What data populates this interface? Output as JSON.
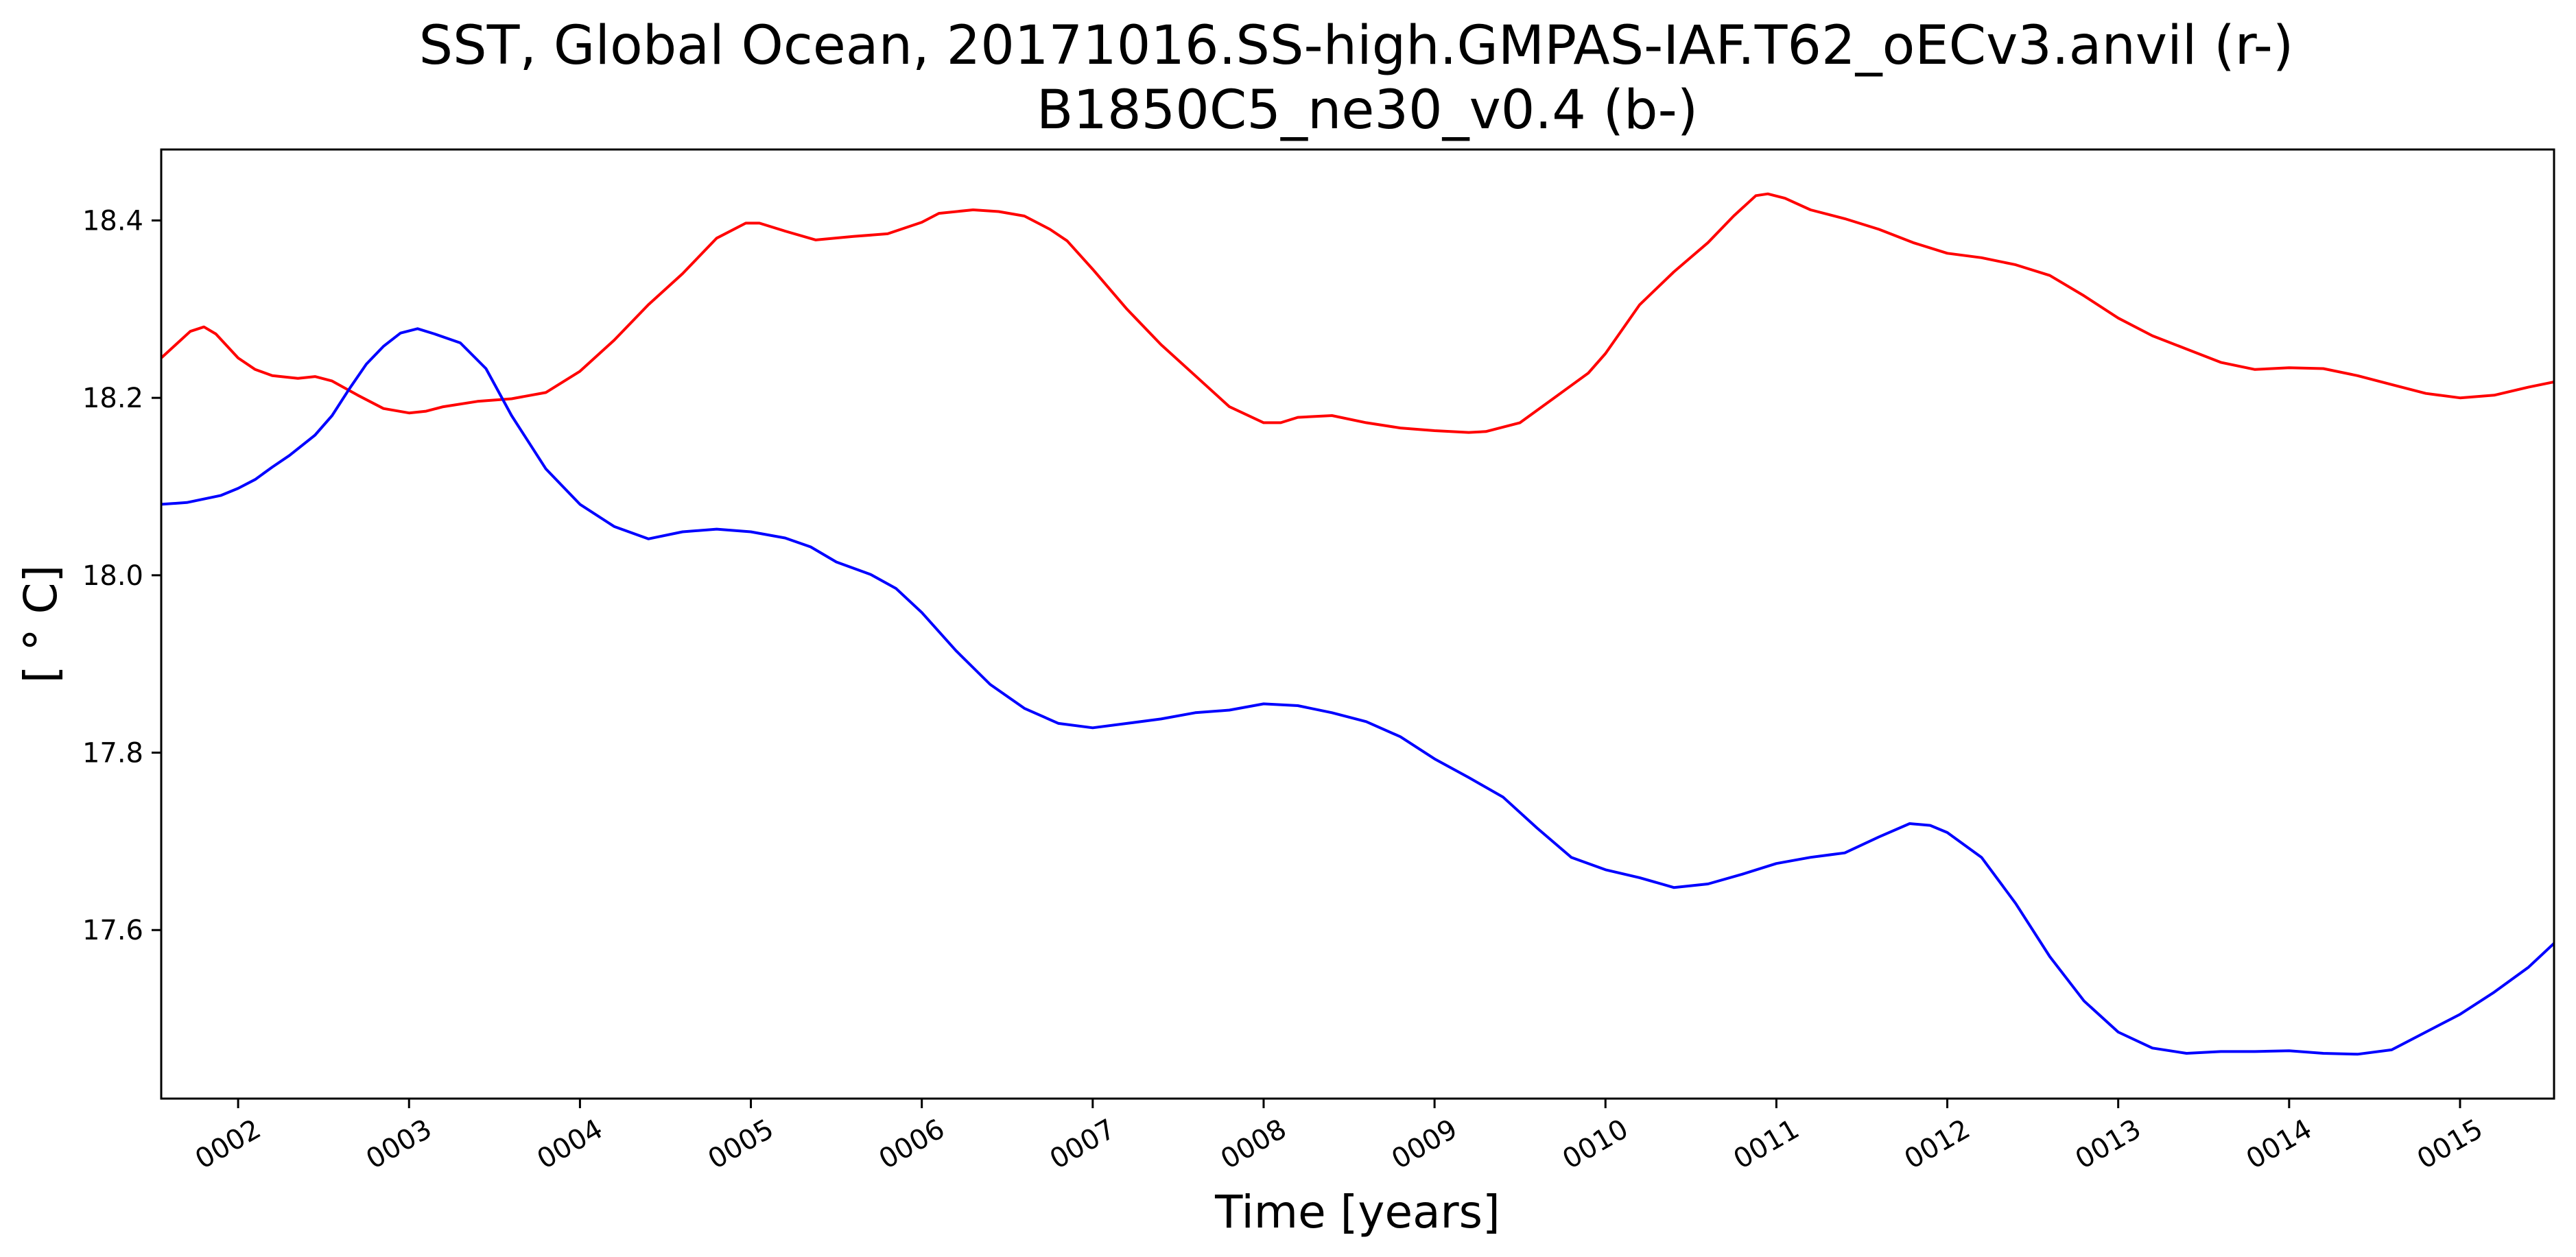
{
  "chart_data": {
    "type": "line",
    "title_line1": "SST, Global Ocean, 20171016.SS-high.GMPAS-IAF.T62_oECv3.anvil (r-)",
    "title_line2": "B1850C5_ne30_v0.4 (b-)",
    "xlabel": "Time [years]",
    "ylabel": "[ ° C]",
    "xlim": [
      1.55,
      15.55
    ],
    "ylim": [
      17.41,
      18.48
    ],
    "grid": false,
    "x_ticks": [
      {
        "value": 2,
        "label": "0002"
      },
      {
        "value": 3,
        "label": "0003"
      },
      {
        "value": 4,
        "label": "0004"
      },
      {
        "value": 5,
        "label": "0005"
      },
      {
        "value": 6,
        "label": "0006"
      },
      {
        "value": 7,
        "label": "0007"
      },
      {
        "value": 8,
        "label": "0008"
      },
      {
        "value": 9,
        "label": "0009"
      },
      {
        "value": 10,
        "label": "0010"
      },
      {
        "value": 11,
        "label": "0011"
      },
      {
        "value": 12,
        "label": "0012"
      },
      {
        "value": 13,
        "label": "0013"
      },
      {
        "value": 14,
        "label": "0014"
      },
      {
        "value": 15,
        "label": "0015"
      }
    ],
    "y_ticks": [
      {
        "value": 17.6,
        "label": "17.6"
      },
      {
        "value": 17.8,
        "label": "17.8"
      },
      {
        "value": 18.0,
        "label": "18.0"
      },
      {
        "value": 18.2,
        "label": "18.2"
      },
      {
        "value": 18.4,
        "label": "18.4"
      }
    ],
    "series": [
      {
        "color": "#ff0000",
        "x": [
          1.55,
          1.72,
          1.8,
          1.87,
          2.0,
          2.1,
          2.2,
          2.35,
          2.45,
          2.55,
          2.7,
          2.85,
          3.0,
          3.1,
          3.2,
          3.4,
          3.6,
          3.8,
          4.0,
          4.2,
          4.4,
          4.6,
          4.8,
          4.97,
          5.05,
          5.2,
          5.38,
          5.6,
          5.8,
          6.0,
          6.1,
          6.3,
          6.45,
          6.6,
          6.75,
          6.85,
          7.0,
          7.2,
          7.4,
          7.6,
          7.8,
          8.0,
          8.1,
          8.2,
          8.4,
          8.6,
          8.8,
          9.0,
          9.2,
          9.3,
          9.5,
          9.7,
          9.9,
          10.0,
          10.2,
          10.4,
          10.6,
          10.75,
          10.88,
          10.95,
          11.05,
          11.2,
          11.4,
          11.6,
          11.8,
          12.0,
          12.2,
          12.4,
          12.6,
          12.8,
          13.0,
          13.2,
          13.4,
          13.6,
          13.8,
          14.0,
          14.2,
          14.4,
          14.6,
          14.8,
          15.0,
          15.2,
          15.4,
          15.55
        ],
        "y": [
          18.245,
          18.275,
          18.28,
          18.272,
          18.245,
          18.232,
          18.225,
          18.222,
          18.224,
          18.219,
          18.203,
          18.188,
          18.183,
          18.185,
          18.19,
          18.196,
          18.199,
          18.206,
          18.23,
          18.265,
          18.305,
          18.34,
          18.38,
          18.397,
          18.397,
          18.388,
          18.378,
          18.382,
          18.385,
          18.398,
          18.408,
          18.412,
          18.41,
          18.405,
          18.39,
          18.377,
          18.345,
          18.3,
          18.26,
          18.225,
          18.19,
          18.172,
          18.172,
          18.178,
          18.18,
          18.172,
          18.166,
          18.163,
          18.161,
          18.162,
          18.172,
          18.2,
          18.228,
          18.25,
          18.305,
          18.342,
          18.375,
          18.405,
          18.428,
          18.43,
          18.425,
          18.412,
          18.402,
          18.39,
          18.375,
          18.363,
          18.358,
          18.35,
          18.338,
          18.315,
          18.29,
          18.27,
          18.255,
          18.24,
          18.232,
          18.234,
          18.233,
          18.225,
          18.215,
          18.205,
          18.2,
          18.203,
          18.212,
          18.218
        ]
      },
      {
        "color": "#0000ff",
        "x": [
          1.55,
          1.7,
          1.9,
          2.0,
          2.1,
          2.2,
          2.3,
          2.45,
          2.55,
          2.65,
          2.75,
          2.85,
          2.95,
          3.05,
          3.15,
          3.3,
          3.45,
          3.6,
          3.8,
          4.0,
          4.2,
          4.4,
          4.6,
          4.8,
          5.0,
          5.2,
          5.35,
          5.5,
          5.7,
          5.85,
          6.0,
          6.2,
          6.4,
          6.6,
          6.8,
          7.0,
          7.2,
          7.4,
          7.6,
          7.8,
          8.0,
          8.2,
          8.4,
          8.6,
          8.8,
          9.0,
          9.2,
          9.4,
          9.6,
          9.8,
          10.0,
          10.2,
          10.4,
          10.6,
          10.8,
          11.0,
          11.2,
          11.4,
          11.6,
          11.78,
          11.9,
          12.0,
          12.2,
          12.4,
          12.6,
          12.8,
          13.0,
          13.2,
          13.4,
          13.6,
          13.8,
          14.0,
          14.2,
          14.4,
          14.6,
          14.8,
          15.0,
          15.2,
          15.4,
          15.55
        ],
        "y": [
          18.08,
          18.082,
          18.09,
          18.098,
          18.108,
          18.122,
          18.135,
          18.158,
          18.18,
          18.21,
          18.238,
          18.258,
          18.273,
          18.278,
          18.272,
          18.262,
          18.233,
          18.18,
          18.12,
          18.08,
          18.055,
          18.041,
          18.049,
          18.052,
          18.049,
          18.042,
          18.032,
          18.015,
          18.001,
          17.985,
          17.958,
          17.915,
          17.877,
          17.85,
          17.833,
          17.828,
          17.833,
          17.838,
          17.845,
          17.848,
          17.855,
          17.853,
          17.845,
          17.835,
          17.818,
          17.793,
          17.772,
          17.75,
          17.715,
          17.682,
          17.668,
          17.659,
          17.648,
          17.652,
          17.663,
          17.675,
          17.682,
          17.687,
          17.705,
          17.72,
          17.718,
          17.71,
          17.682,
          17.63,
          17.57,
          17.52,
          17.485,
          17.467,
          17.461,
          17.463,
          17.463,
          17.464,
          17.461,
          17.46,
          17.465,
          17.485,
          17.505,
          17.53,
          17.558,
          17.585
        ]
      }
    ]
  }
}
